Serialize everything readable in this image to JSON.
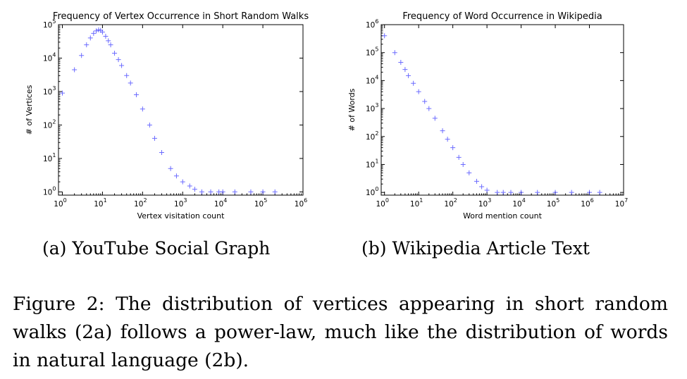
{
  "chart_data": [
    {
      "type": "scatter",
      "title": "Frequency of Vertex Occurrence in Short Random Walks",
      "xlabel": "Vertex visitation count",
      "ylabel": "# of Vertices",
      "xscale": "log",
      "yscale": "log",
      "xlim": [
        0.8,
        1000000
      ],
      "ylim": [
        0.8,
        100000
      ],
      "xticks": [
        {
          "base": "10",
          "exp": "0"
        },
        {
          "base": "10",
          "exp": "1"
        },
        {
          "base": "10",
          "exp": "2"
        },
        {
          "base": "10",
          "exp": "3"
        },
        {
          "base": "10",
          "exp": "4"
        },
        {
          "base": "10",
          "exp": "5"
        },
        {
          "base": "10",
          "exp": "6"
        }
      ],
      "yticks": [
        {
          "base": "10",
          "exp": "0"
        },
        {
          "base": "10",
          "exp": "1"
        },
        {
          "base": "10",
          "exp": "2"
        },
        {
          "base": "10",
          "exp": "3"
        },
        {
          "base": "10",
          "exp": "4"
        },
        {
          "base": "10",
          "exp": "5"
        }
      ],
      "marker": "+",
      "color": "#3a3aff",
      "grid": false,
      "series": [
        {
          "x": [
            1,
            2,
            3,
            4,
            5,
            6,
            7,
            8,
            9,
            10,
            12,
            14,
            16,
            20,
            25,
            30,
            40,
            50,
            70,
            100,
            150,
            200,
            300,
            500,
            700,
            1000,
            1500,
            2000,
            3000,
            5000,
            8000,
            10000,
            20000,
            50000,
            100000,
            200000
          ],
          "y": [
            900,
            4500,
            12000,
            25000,
            40000,
            55000,
            65000,
            70000,
            68000,
            60000,
            45000,
            33000,
            25000,
            14000,
            9000,
            6000,
            3000,
            1800,
            800,
            300,
            100,
            40,
            15,
            5,
            3,
            2,
            1.5,
            1.2,
            1,
            1,
            1,
            1,
            1,
            1,
            1,
            1
          ]
        }
      ]
    },
    {
      "type": "scatter",
      "title": "Frequency of Word Occurrence in Wikipedia",
      "xlabel": "Word mention count",
      "ylabel": "# of Words",
      "xscale": "log",
      "yscale": "log",
      "xlim": [
        0.8,
        10000000
      ],
      "ylim": [
        0.8,
        1000000
      ],
      "xticks": [
        {
          "base": "10",
          "exp": "0"
        },
        {
          "base": "10",
          "exp": "1"
        },
        {
          "base": "10",
          "exp": "2"
        },
        {
          "base": "10",
          "exp": "3"
        },
        {
          "base": "10",
          "exp": "4"
        },
        {
          "base": "10",
          "exp": "5"
        },
        {
          "base": "10",
          "exp": "6"
        },
        {
          "base": "10",
          "exp": "7"
        }
      ],
      "yticks": [
        {
          "base": "10",
          "exp": "0"
        },
        {
          "base": "10",
          "exp": "1"
        },
        {
          "base": "10",
          "exp": "2"
        },
        {
          "base": "10",
          "exp": "3"
        },
        {
          "base": "10",
          "exp": "4"
        },
        {
          "base": "10",
          "exp": "5"
        },
        {
          "base": "10",
          "exp": "6"
        }
      ],
      "marker": "+",
      "color": "#3a3aff",
      "grid": false,
      "series": [
        {
          "x": [
            1,
            2,
            3,
            4,
            5,
            7,
            10,
            15,
            20,
            30,
            50,
            70,
            100,
            150,
            200,
            300,
            500,
            700,
            1000,
            2000,
            3000,
            5000,
            10000,
            30000,
            100000,
            300000,
            1000000,
            2000000
          ],
          "y": [
            400000,
            100000,
            45000,
            25000,
            15000,
            8000,
            4000,
            1800,
            1000,
            450,
            160,
            80,
            40,
            18,
            10,
            5,
            2.5,
            1.6,
            1.2,
            1,
            1,
            1,
            1,
            1,
            1,
            1,
            1,
            1
          ]
        }
      ]
    }
  ],
  "subcaptions": {
    "a": "(a) YouTube Social Graph",
    "b": "(b) Wikipedia Article Text"
  },
  "figure_caption": "Figure 2: The distribution of vertices appearing in short random walks (2a) follows a power-law, much like the distribution of words in natural language (2b)."
}
